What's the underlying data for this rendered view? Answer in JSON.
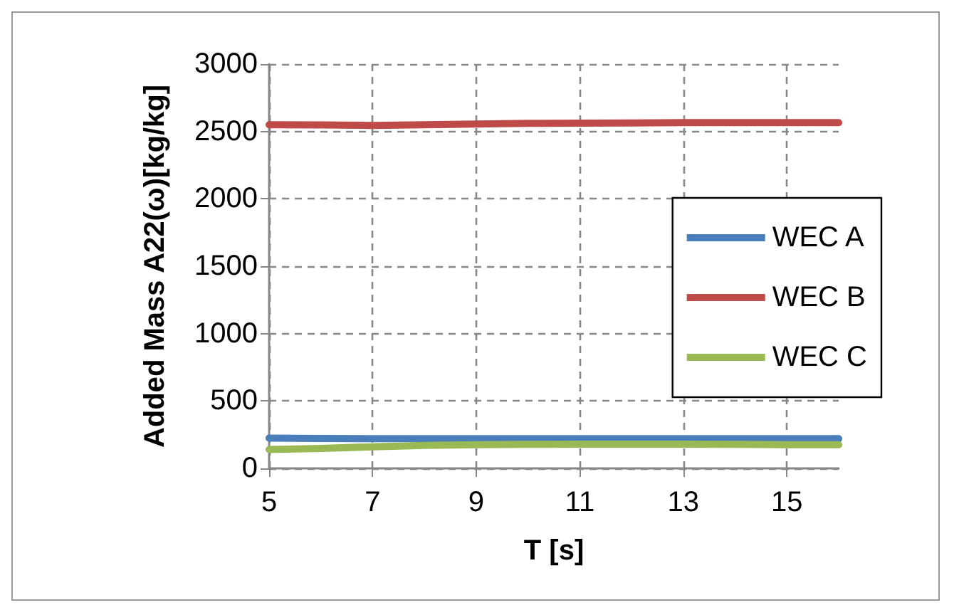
{
  "chart_data": {
    "type": "line",
    "xlabel": "T [s]",
    "ylabel": "Added Mass A22(ω)[kg/kg]",
    "x": [
      5,
      6,
      7,
      8,
      9,
      10,
      11,
      12,
      13,
      14,
      15,
      16
    ],
    "series": [
      {
        "name": "WEC A",
        "color": "#4a7ebb",
        "values": [
          225,
          222,
          220,
          220,
          220,
          220,
          220,
          220,
          220,
          220,
          220,
          220
        ]
      },
      {
        "name": "WEC B",
        "color": "#be4b48",
        "values": [
          2550,
          2548,
          2545,
          2550,
          2555,
          2560,
          2562,
          2563,
          2565,
          2565,
          2565,
          2565
        ]
      },
      {
        "name": "WEC C",
        "color": "#98b954",
        "values": [
          140,
          148,
          160,
          170,
          175,
          178,
          180,
          180,
          180,
          178,
          176,
          175
        ]
      }
    ],
    "xlim": [
      5,
      16
    ],
    "xticks": [
      5,
      7,
      9,
      11,
      13,
      15
    ],
    "ylim": [
      0,
      3000
    ],
    "yticks": [
      0,
      500,
      1000,
      1500,
      2000,
      2500,
      3000
    ],
    "grid": true,
    "legend": "right",
    "marker": "none",
    "line_style": "solid"
  }
}
